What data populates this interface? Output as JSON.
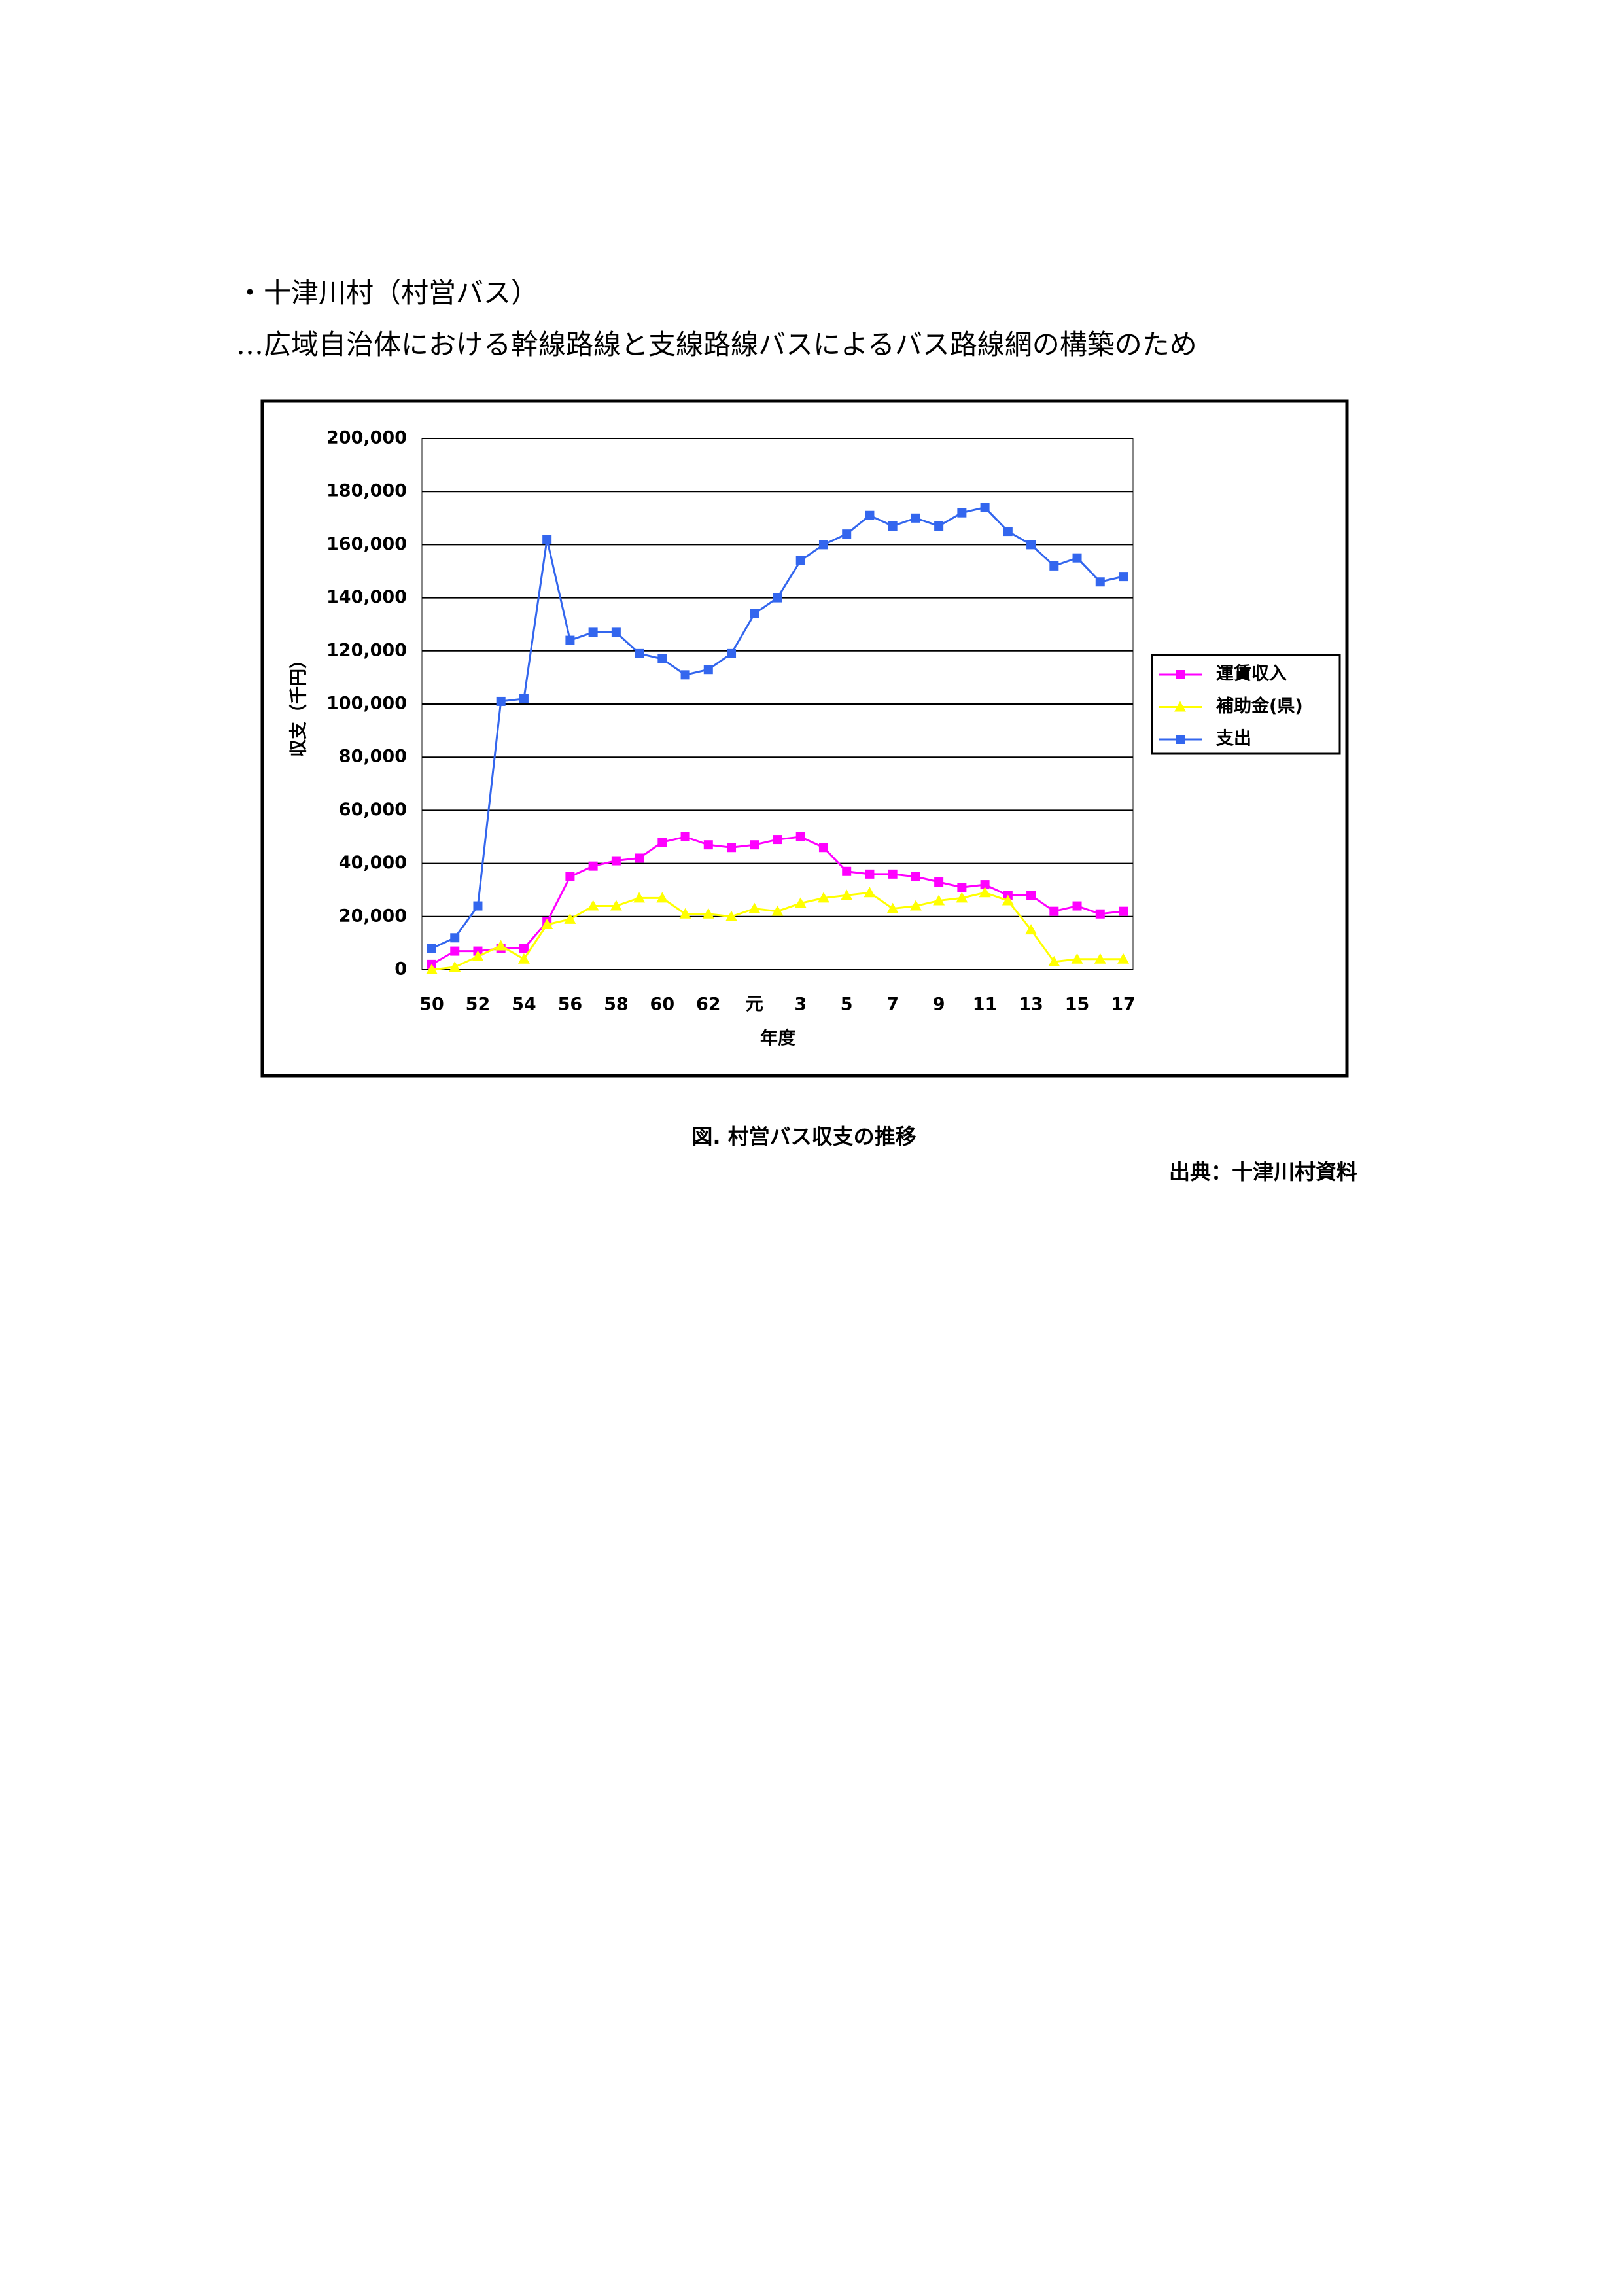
{
  "document": {
    "lines": [
      "・十津川村（村営バス）",
      "…広域自治体における幹線路線と支線路線バスによるバス路線網の構築のため"
    ],
    "caption": "図. 村営バス収支の推移",
    "source": "出典：十津川村資料"
  },
  "chart_data": {
    "type": "line",
    "x_label": "年度",
    "y_label": "収支（千円）",
    "categories": [
      "50",
      null,
      "52",
      null,
      "54",
      null,
      "56",
      null,
      "58",
      null,
      "60",
      null,
      "62",
      null,
      "元",
      null,
      "3",
      null,
      "5",
      null,
      "7",
      null,
      "9",
      null,
      "11",
      null,
      "13",
      null,
      "15",
      null,
      "17"
    ],
    "ylim": [
      0,
      200000
    ],
    "yticks": [
      0,
      {
        "value": 20000,
        "label": "20,000"
      },
      {
        "value": 40000,
        "label": "40,000"
      },
      {
        "value": 60000,
        "label": "60,000"
      },
      {
        "value": 80000,
        "label": "80,000"
      },
      {
        "value": 100000,
        "label": "100,000"
      },
      {
        "value": 120000,
        "label": "120,000"
      },
      {
        "value": 140000,
        "label": "140,000"
      },
      {
        "value": 160000,
        "label": "160,000"
      },
      {
        "value": 180000,
        "label": "180,000"
      },
      {
        "value": 200000,
        "label": "200,000"
      }
    ],
    "grid": true,
    "legend": "right",
    "series": [
      {
        "name": "運賃収入",
        "color": "#ff00ff",
        "marker": "square",
        "values": [
          2000,
          7000,
          7000,
          8000,
          8000,
          18000,
          35000,
          39000,
          41000,
          42000,
          48000,
          50000,
          47000,
          46000,
          47000,
          49000,
          50000,
          46000,
          37000,
          36000,
          36000,
          35000,
          33000,
          31000,
          32000,
          28000,
          28000,
          22000,
          24000,
          21000,
          22000
        ]
      },
      {
        "name": "補助金(県)",
        "color": "#ffff00",
        "marker": "triangle",
        "values": [
          0,
          1000,
          5000,
          9000,
          4000,
          17000,
          19000,
          24000,
          24000,
          27000,
          27000,
          21000,
          21000,
          20000,
          23000,
          22000,
          25000,
          27000,
          28000,
          29000,
          23000,
          24000,
          26000,
          27000,
          29000,
          26000,
          15000,
          3000,
          4000,
          4000,
          4000
        ]
      },
      {
        "name": "支出",
        "color": "#3366ee",
        "marker": "square",
        "values": [
          8000,
          12000,
          24000,
          101000,
          102000,
          162000,
          124000,
          127000,
          127000,
          119000,
          117000,
          111000,
          113000,
          119000,
          134000,
          140000,
          154000,
          160000,
          164000,
          171000,
          167000,
          170000,
          167000,
          172000,
          174000,
          165000,
          160000,
          152000,
          155000,
          146000,
          148000
        ]
      }
    ]
  }
}
